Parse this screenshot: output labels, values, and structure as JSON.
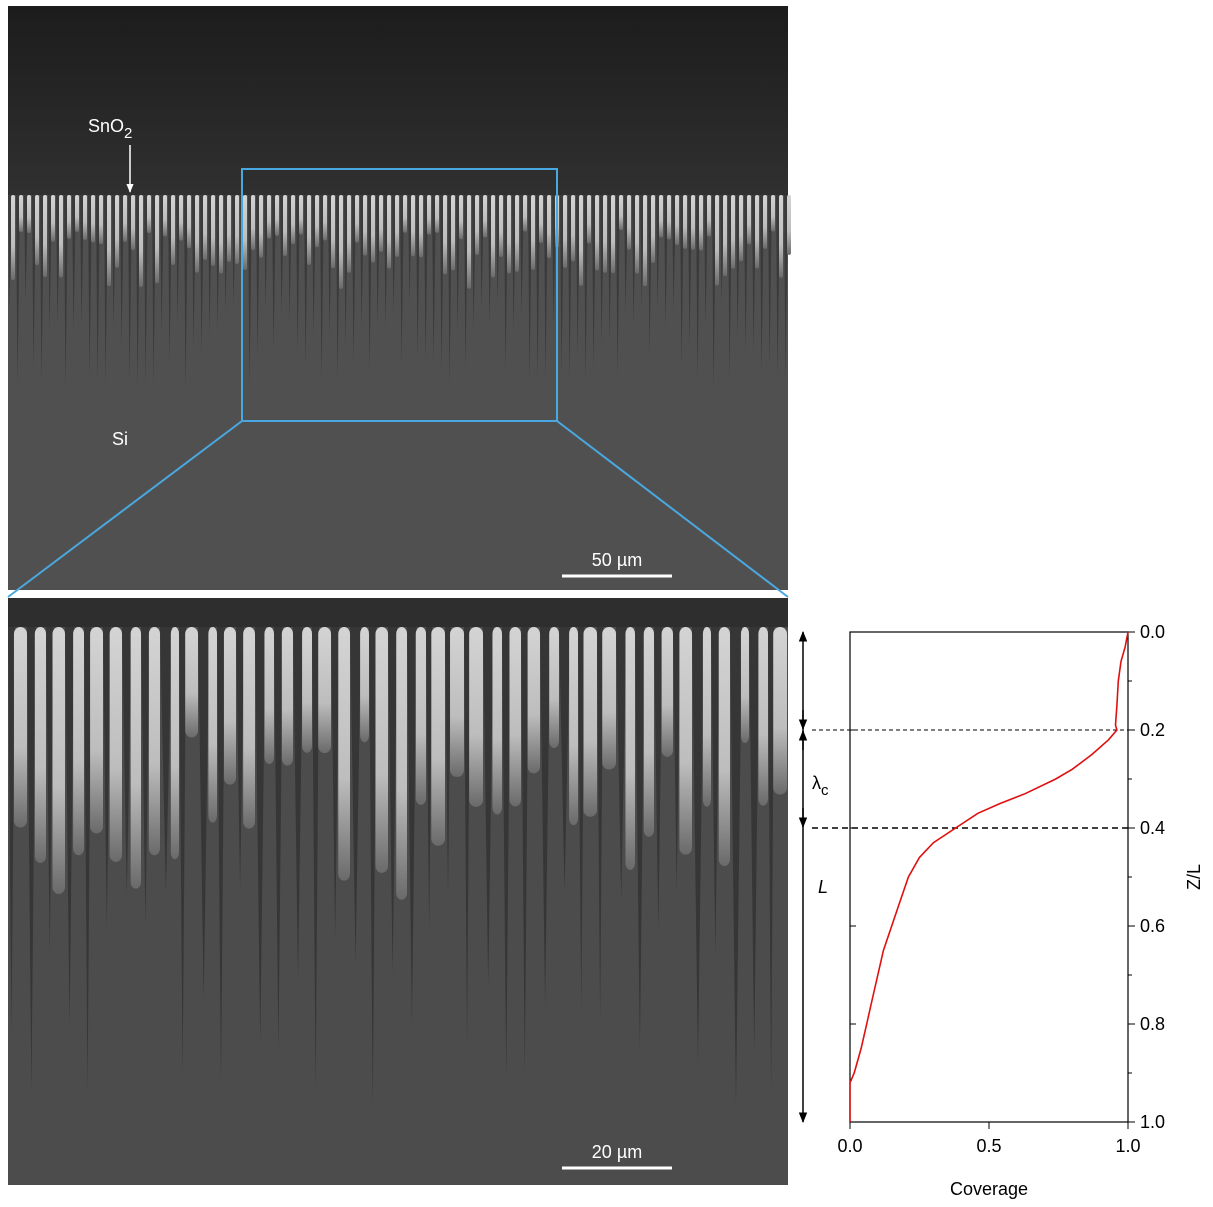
{
  "image_labels": [
    {
      "text": "SnO",
      "sub": "2"
    },
    {
      "text": "Si"
    }
  ],
  "scale_bars": [
    "50 µm",
    "20 µm"
  ],
  "chart_data": {
    "type": "line",
    "x_label": "Coverage",
    "y_label": "Z/L",
    "x": [
      1.0,
      0.99,
      0.975,
      0.965,
      0.96,
      0.955,
      0.96,
      0.93,
      0.87,
      0.8,
      0.74,
      0.63,
      0.54,
      0.46,
      0.38,
      0.3,
      0.25,
      0.21,
      0.18,
      0.15,
      0.12,
      0.1,
      0.08,
      0.06,
      0.04,
      0.015,
      0.0,
      0.0
    ],
    "values": [
      0.0,
      0.03,
      0.06,
      0.1,
      0.15,
      0.19,
      0.2,
      0.22,
      0.25,
      0.28,
      0.3,
      0.33,
      0.35,
      0.37,
      0.4,
      0.43,
      0.46,
      0.5,
      0.55,
      0.6,
      0.65,
      0.7,
      0.75,
      0.8,
      0.85,
      0.9,
      0.92,
      1.0
    ],
    "color": "#e01010",
    "xlim": [
      0,
      1
    ],
    "xticks": [
      {
        "value": 0,
        "label": "0.0"
      },
      0.5,
      {
        "value": 1,
        "label": "1.0"
      }
    ],
    "ylim": [
      0,
      1
    ],
    "yticks": [
      {
        "value": 0,
        "label": "0.0"
      },
      0.2,
      0.4,
      0.6,
      0.8,
      {
        "value": 1,
        "label": "1.0"
      }
    ],
    "yminorticks": [
      0.1,
      0.3,
      0.5,
      0.7,
      0.9
    ],
    "y_inverted": true,
    "y_axis_side": "right",
    "reference_lines": [
      0.2,
      0.4
    ],
    "annotations": [
      {
        "text": "λ",
        "sub": "c"
      },
      {
        "text": "L"
      }
    ]
  }
}
